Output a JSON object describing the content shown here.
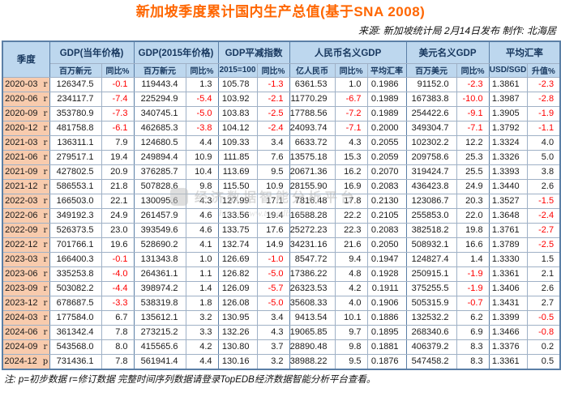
{
  "header": {
    "source_note": "来源: 新加坡统计局 2月14日发布  制作: 北海居"
  },
  "footer": {
    "note": "注: p=初步数据 r=修订数据 完整时间序列数据请登录TopEDB经济数据智能分析平台查看。"
  },
  "watermark": {
    "logo": "topedb-logo",
    "text": "经济数据智能分析平台",
    "url": "http://www.topedb.com"
  },
  "colors": {
    "title_color": "#FF6600",
    "negative": "#FF0000",
    "header_bg": "#BDD7EE",
    "header_text": "#17375E",
    "quarter_bg": "#F8CBAD",
    "border": "#9FB1C6",
    "border_strong": "#5B7FA6"
  },
  "chart_data": {
    "type": "table",
    "title": "新加坡季度累计国内生产总值(基于SNA 2008)",
    "groups": [
      {
        "label": "季度",
        "cols": 1
      },
      {
        "label": "GDP(当年价格)",
        "cols": 2
      },
      {
        "label": "GDP(2015年价格)",
        "cols": 2
      },
      {
        "label": "GDP平减指数",
        "cols": 2
      },
      {
        "label": "人民币名义GDP",
        "cols": 3
      },
      {
        "label": "美元名义GDP",
        "cols": 2
      },
      {
        "label": "平均汇率",
        "cols": 2
      }
    ],
    "sub_headers": [
      "百万新元",
      "同比%",
      "百万新元",
      "同比%",
      "2015=100",
      "同比%",
      "亿人民币",
      "同比%",
      "平均汇率",
      "百万美元",
      "同比%",
      "USD/SGD",
      "升值%"
    ],
    "rows": [
      {
        "quarter": "2020-03",
        "flag": "r",
        "values": [
          "126347.5",
          "-0.1",
          "119443.4",
          "1.3",
          "105.78",
          "-1.3",
          "6361.53",
          "1.0",
          "0.1986",
          "91152.0",
          "-2.3",
          "1.3861",
          "-2.3"
        ]
      },
      {
        "quarter": "2020-06",
        "flag": "r",
        "values": [
          "234117.7",
          "-7.4",
          "225294.9",
          "-5.4",
          "103.92",
          "-2.1",
          "11770.29",
          "-6.7",
          "0.1989",
          "167383.8",
          "-10.0",
          "1.3987",
          "-2.8"
        ]
      },
      {
        "quarter": "2020-09",
        "flag": "r",
        "values": [
          "353780.9",
          "-7.3",
          "340745.1",
          "-5.0",
          "103.83",
          "-2.5",
          "17788.56",
          "-7.2",
          "0.1989",
          "254422.6",
          "-9.1",
          "1.3905",
          "-1.9"
        ]
      },
      {
        "quarter": "2020-12",
        "flag": "r",
        "values": [
          "481758.8",
          "-6.1",
          "462685.3",
          "-3.8",
          "104.12",
          "-2.4",
          "24093.74",
          "-7.1",
          "0.2000",
          "349304.7",
          "-7.1",
          "1.3792",
          "-1.1"
        ]
      },
      {
        "quarter": "2021-03",
        "flag": "r",
        "values": [
          "136311.1",
          "7.9",
          "124680.5",
          "4.4",
          "109.33",
          "3.4",
          "6633.72",
          "4.3",
          "0.2055",
          "102302.2",
          "12.2",
          "1.3324",
          "4.0"
        ]
      },
      {
        "quarter": "2021-06",
        "flag": "r",
        "values": [
          "279517.1",
          "19.4",
          "249894.4",
          "10.9",
          "111.85",
          "7.6",
          "13575.18",
          "15.3",
          "0.2059",
          "209758.6",
          "25.3",
          "1.3326",
          "5.0"
        ]
      },
      {
        "quarter": "2021-09",
        "flag": "r",
        "values": [
          "427802.5",
          "20.9",
          "376285.7",
          "10.4",
          "113.69",
          "9.5",
          "20671.36",
          "16.2",
          "0.2070",
          "319424.7",
          "25.5",
          "1.3393",
          "3.8"
        ]
      },
      {
        "quarter": "2021-12",
        "flag": "r",
        "values": [
          "586553.1",
          "21.8",
          "507828.6",
          "9.8",
          "115.50",
          "10.9",
          "28155.90",
          "16.9",
          "0.2083",
          "436423.8",
          "24.9",
          "1.3440",
          "2.6"
        ]
      },
      {
        "quarter": "2022-03",
        "flag": "r",
        "values": [
          "166503.0",
          "22.1",
          "130095.6",
          "4.3",
          "127.99",
          "17.1",
          "7816.48",
          "17.8",
          "0.2130",
          "123086.7",
          "20.3",
          "1.3527",
          "-1.5"
        ]
      },
      {
        "quarter": "2022-06",
        "flag": "r",
        "values": [
          "349192.3",
          "24.9",
          "261457.9",
          "4.6",
          "133.56",
          "19.4",
          "16588.28",
          "22.2",
          "0.2105",
          "255853.0",
          "22.0",
          "1.3648",
          "-2.4"
        ]
      },
      {
        "quarter": "2022-09",
        "flag": "r",
        "values": [
          "526373.5",
          "23.0",
          "393549.6",
          "4.6",
          "133.75",
          "17.6",
          "25272.23",
          "22.3",
          "0.2083",
          "382518.2",
          "19.8",
          "1.3761",
          "-2.7"
        ]
      },
      {
        "quarter": "2022-12",
        "flag": "r",
        "values": [
          "701766.1",
          "19.6",
          "528690.2",
          "4.1",
          "132.74",
          "14.9",
          "34231.16",
          "21.6",
          "0.2050",
          "508932.1",
          "16.6",
          "1.3789",
          "-2.5"
        ]
      },
      {
        "quarter": "2023-03",
        "flag": "r",
        "values": [
          "166400.3",
          "-0.1",
          "131343.8",
          "1.0",
          "126.69",
          "-1.0",
          "8547.72",
          "9.4",
          "0.1947",
          "124827.4",
          "1.4",
          "1.3330",
          "1.5"
        ]
      },
      {
        "quarter": "2023-06",
        "flag": "r",
        "values": [
          "335253.8",
          "-4.0",
          "264361.1",
          "1.1",
          "126.82",
          "-5.0",
          "17386.22",
          "4.8",
          "0.1928",
          "250915.1",
          "-1.9",
          "1.3361",
          "2.1"
        ]
      },
      {
        "quarter": "2023-09",
        "flag": "r",
        "values": [
          "503082.2",
          "-4.4",
          "398974.2",
          "1.4",
          "126.09",
          "-5.7",
          "26323.53",
          "4.2",
          "0.1911",
          "375255.5",
          "-1.9",
          "1.3406",
          "2.6"
        ]
      },
      {
        "quarter": "2023-12",
        "flag": "r",
        "values": [
          "678687.5",
          "-3.3",
          "538319.8",
          "1.8",
          "126.08",
          "-5.0",
          "35608.33",
          "4.0",
          "0.1906",
          "505315.9",
          "-0.7",
          "1.3431",
          "2.7"
        ]
      },
      {
        "quarter": "2024-03",
        "flag": "r",
        "values": [
          "177584.0",
          "6.7",
          "135612.1",
          "3.2",
          "130.95",
          "3.4",
          "9413.54",
          "10.1",
          "0.1886",
          "132532.2",
          "6.2",
          "1.3399",
          "-0.5"
        ]
      },
      {
        "quarter": "2024-06",
        "flag": "r",
        "values": [
          "361342.4",
          "7.8",
          "273215.2",
          "3.3",
          "132.26",
          "4.3",
          "19065.85",
          "9.7",
          "0.1895",
          "268340.6",
          "6.9",
          "1.3466",
          "-0.8"
        ]
      },
      {
        "quarter": "2024-09",
        "flag": "r",
        "values": [
          "543568.0",
          "8.0",
          "415565.6",
          "4.2",
          "130.80",
          "3.7",
          "28890.48",
          "9.8",
          "0.1881",
          "406379.2",
          "8.3",
          "1.3376",
          "0.2"
        ]
      },
      {
        "quarter": "2024-12",
        "flag": "p",
        "values": [
          "731436.1",
          "7.8",
          "561941.4",
          "4.4",
          "130.16",
          "3.2",
          "38988.22",
          "9.5",
          "0.1876",
          "547458.2",
          "8.3",
          "1.3361",
          "0.5"
        ]
      }
    ]
  }
}
